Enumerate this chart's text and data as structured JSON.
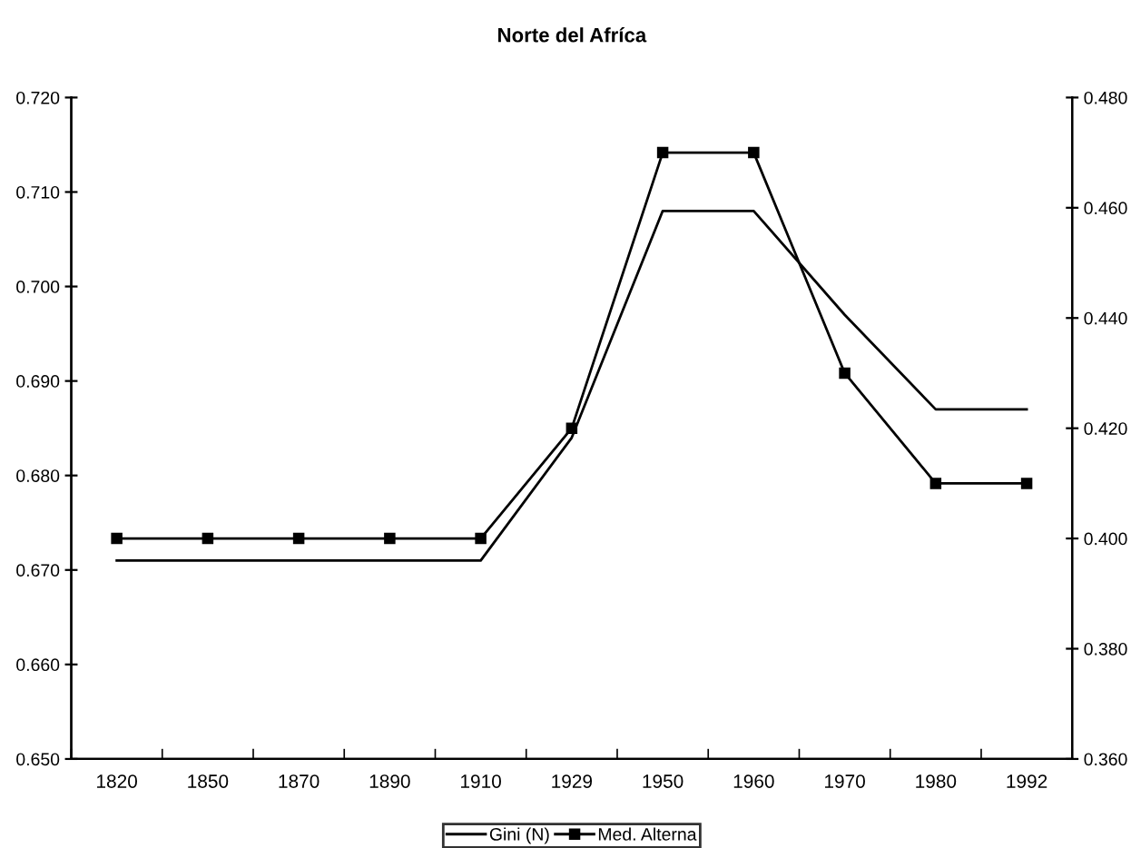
{
  "chart_data": {
    "type": "line",
    "title": "Norte del Afríca",
    "categories": [
      "1820",
      "1850",
      "1870",
      "1890",
      "1910",
      "1929",
      "1950",
      "1960",
      "1970",
      "1980",
      "1992"
    ],
    "series": [
      {
        "name": "Gini (N)",
        "color": "#000000",
        "marker": "none",
        "values": [
          0.671,
          0.671,
          0.671,
          0.671,
          0.671,
          0.684,
          0.708,
          0.708,
          0.697,
          0.687,
          0.687
        ]
      },
      {
        "name": "Med. Alterna",
        "color": "#000000",
        "marker": "square",
        "axis": "y2",
        "values": [
          0.4,
          0.4,
          0.4,
          0.4,
          0.4,
          0.42,
          0.47,
          0.47,
          0.43,
          0.41,
          0.41
        ]
      }
    ],
    "ylim": [
      0.65,
      0.72
    ],
    "yticks": [
      {
        "value": 0.65,
        "label": "0.650"
      },
      {
        "value": 0.66,
        "label": "0.660"
      },
      {
        "value": 0.67,
        "label": "0.670"
      },
      {
        "value": 0.68,
        "label": "0.680"
      },
      {
        "value": 0.69,
        "label": "0.690"
      },
      {
        "value": 0.7,
        "label": "0.700"
      },
      {
        "value": 0.71,
        "label": "0.710"
      },
      {
        "value": 0.72,
        "label": "0.720"
      }
    ],
    "y2lim": [
      0.36,
      0.48
    ],
    "y2ticks": [
      {
        "value": 0.36,
        "label": "0.360"
      },
      {
        "value": 0.38,
        "label": "0.380"
      },
      {
        "value": 0.4,
        "label": "0.400"
      },
      {
        "value": 0.42,
        "label": "0.420"
      },
      {
        "value": 0.44,
        "label": "0.440"
      },
      {
        "value": 0.46,
        "label": "0.460"
      },
      {
        "value": 0.48,
        "label": "0.480"
      }
    ],
    "grid": false,
    "legend": "bottom"
  }
}
